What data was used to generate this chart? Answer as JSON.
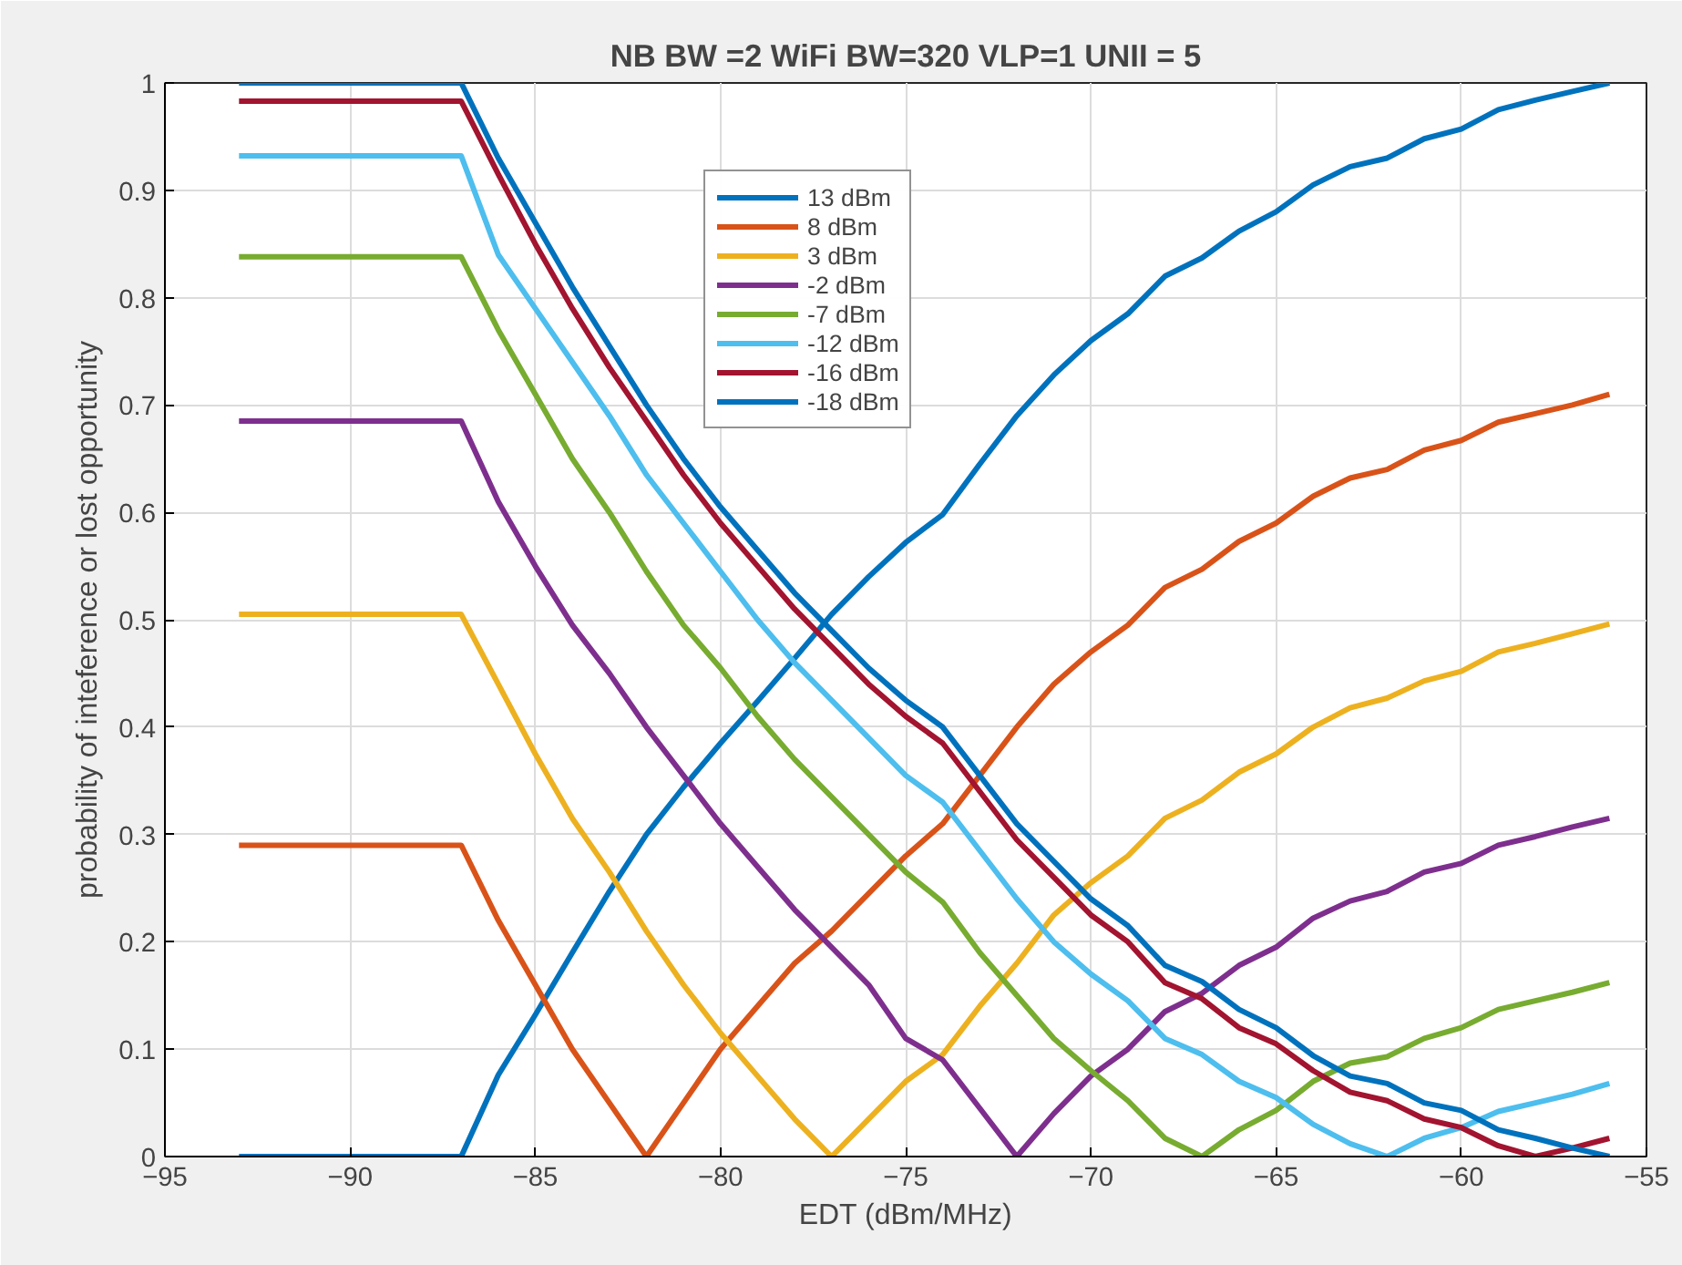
{
  "chart_data": {
    "type": "line",
    "title": "NB BW =2 WiFi BW=320 VLP=1 UNII = 5",
    "xlabel": "EDT (dBm/MHz)",
    "ylabel": "probability of inteference or lost opportunity",
    "x": [
      -93,
      -92,
      -91,
      -90,
      -89,
      -88,
      -87,
      -86,
      -85,
      -84,
      -83,
      -82,
      -81,
      -80,
      -79,
      -78,
      -77,
      -76,
      -75,
      -74,
      -73,
      -72,
      -71,
      -70,
      -69,
      -68,
      -67,
      -66,
      -65,
      -64,
      -63,
      -62,
      -61,
      -60,
      -59,
      -58,
      -57,
      -56
    ],
    "series": [
      {
        "name": "13 dBm",
        "color": "#0072bd",
        "values": [
          0,
          0,
          0,
          0,
          0,
          0,
          0,
          0.076,
          0.132,
          0.19,
          0.247,
          0.3,
          0.344,
          0.385,
          0.424,
          0.464,
          0.505,
          0.54,
          0.572,
          0.598,
          0.645,
          0.69,
          0.728,
          0.76,
          0.785,
          0.82,
          0.837,
          0.862,
          0.88,
          0.905,
          0.922,
          0.93,
          0.948,
          0.957,
          0.975,
          0.984,
          0.992,
          1.0
        ]
      },
      {
        "name": "8 dBm",
        "color": "#d95319",
        "values": [
          0.29,
          0.29,
          0.29,
          0.29,
          0.29,
          0.29,
          0.29,
          0.22,
          0.16,
          0.1,
          0.05,
          0,
          0.05,
          0.1,
          0.14,
          0.18,
          0.21,
          0.245,
          0.28,
          0.31,
          0.355,
          0.4,
          0.44,
          0.47,
          0.495,
          0.53,
          0.547,
          0.573,
          0.59,
          0.615,
          0.632,
          0.64,
          0.658,
          0.667,
          0.684,
          0.692,
          0.7,
          0.71
        ]
      },
      {
        "name": "3 dBm",
        "color": "#edb120",
        "values": [
          0.505,
          0.505,
          0.505,
          0.505,
          0.505,
          0.505,
          0.505,
          0.44,
          0.375,
          0.315,
          0.265,
          0.21,
          0.16,
          0.115,
          0.075,
          0.035,
          0,
          0.035,
          0.07,
          0.095,
          0.14,
          0.18,
          0.225,
          0.255,
          0.28,
          0.315,
          0.332,
          0.358,
          0.375,
          0.4,
          0.418,
          0.427,
          0.443,
          0.452,
          0.47,
          0.478,
          0.487,
          0.496
        ]
      },
      {
        "name": "-2 dBm",
        "color": "#7e2f8e",
        "values": [
          0.685,
          0.685,
          0.685,
          0.685,
          0.685,
          0.685,
          0.685,
          0.61,
          0.55,
          0.495,
          0.45,
          0.4,
          0.355,
          0.31,
          0.27,
          0.23,
          0.195,
          0.16,
          0.11,
          0.09,
          0.045,
          0,
          0.04,
          0.075,
          0.1,
          0.135,
          0.152,
          0.178,
          0.195,
          0.222,
          0.238,
          0.247,
          0.265,
          0.273,
          0.29,
          0.298,
          0.307,
          0.315
        ]
      },
      {
        "name": "-7 dBm",
        "color": "#77ac30",
        "values": [
          0.838,
          0.838,
          0.838,
          0.838,
          0.838,
          0.838,
          0.838,
          0.77,
          0.71,
          0.65,
          0.6,
          0.545,
          0.495,
          0.455,
          0.41,
          0.37,
          0.335,
          0.3,
          0.265,
          0.237,
          0.19,
          0.15,
          0.11,
          0.08,
          0.052,
          0.017,
          0,
          0.025,
          0.043,
          0.07,
          0.087,
          0.093,
          0.11,
          0.12,
          0.137,
          0.145,
          0.153,
          0.162
        ]
      },
      {
        "name": "-12 dBm",
        "color": "#4dbeee",
        "values": [
          0.932,
          0.932,
          0.932,
          0.932,
          0.932,
          0.932,
          0.932,
          0.84,
          0.79,
          0.74,
          0.69,
          0.635,
          0.59,
          0.545,
          0.5,
          0.46,
          0.425,
          0.39,
          0.355,
          0.33,
          0.285,
          0.24,
          0.2,
          0.17,
          0.145,
          0.11,
          0.095,
          0.07,
          0.055,
          0.03,
          0.012,
          0,
          0.017,
          0.027,
          0.042,
          0.05,
          0.058,
          0.068
        ]
      },
      {
        "name": "-16 dBm",
        "color": "#a2142f",
        "values": [
          0.983,
          0.983,
          0.983,
          0.983,
          0.983,
          0.983,
          0.983,
          0.915,
          0.85,
          0.79,
          0.735,
          0.685,
          0.635,
          0.59,
          0.55,
          0.51,
          0.475,
          0.44,
          0.41,
          0.385,
          0.34,
          0.295,
          0.26,
          0.225,
          0.2,
          0.162,
          0.147,
          0.12,
          0.105,
          0.08,
          0.06,
          0.052,
          0.035,
          0.027,
          0.01,
          0,
          0.008,
          0.017
        ]
      },
      {
        "name": "-18 dBm",
        "color": "#0072bd",
        "values": [
          1,
          1,
          1,
          1,
          1,
          1,
          1,
          0.93,
          0.87,
          0.81,
          0.755,
          0.7,
          0.65,
          0.605,
          0.565,
          0.525,
          0.49,
          0.455,
          0.425,
          0.4,
          0.355,
          0.31,
          0.275,
          0.24,
          0.215,
          0.178,
          0.163,
          0.137,
          0.12,
          0.094,
          0.075,
          0.068,
          0.05,
          0.043,
          0.025,
          0.017,
          0.008,
          0
        ]
      }
    ],
    "xlim": [
      -95,
      -55
    ],
    "xticks": [
      -95,
      -90,
      -85,
      -80,
      -75,
      -70,
      -65,
      -60,
      -55
    ],
    "ylim": [
      0,
      1
    ],
    "yticks": [
      0,
      0.1,
      0.2,
      0.3,
      0.4,
      0.5,
      0.6,
      0.7,
      0.8,
      0.9,
      1
    ],
    "grid": true,
    "legend": "top",
    "line_style": "solid"
  }
}
